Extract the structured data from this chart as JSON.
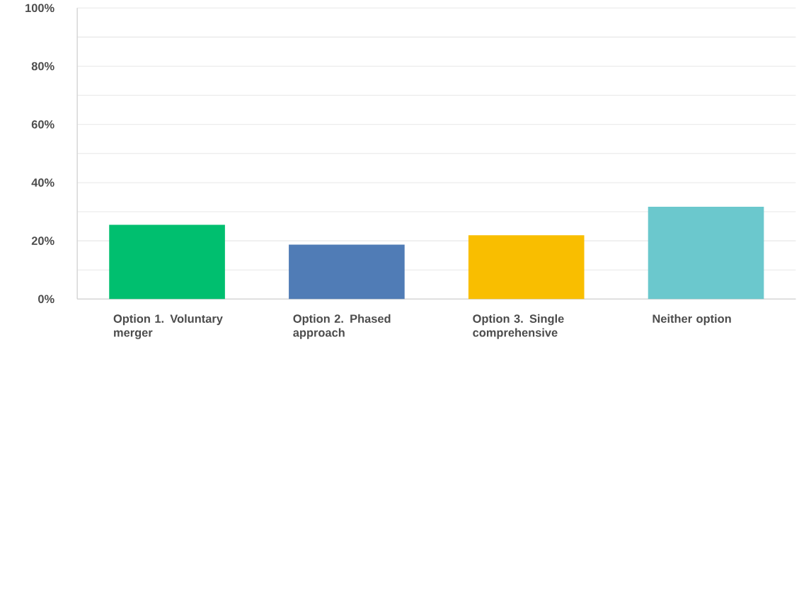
{
  "chart_data": {
    "type": "bar",
    "categories": [
      "Option 1. Voluntary merger",
      "Option 2. Phased approach",
      "Option 3. Single comprehensive",
      "Neither option"
    ],
    "values": [
      25.5,
      18.7,
      21.9,
      31.7
    ],
    "colors": [
      "#00bf6f",
      "#507cb6",
      "#f9be00",
      "#6bc8cd"
    ],
    "ylim": [
      0,
      100
    ],
    "yticks": [
      {
        "value": 0,
        "label": "0%"
      },
      {
        "value": 10,
        "label": null
      },
      {
        "value": 20,
        "label": "20%"
      },
      {
        "value": 30,
        "label": null
      },
      {
        "value": 40,
        "label": "40%"
      },
      {
        "value": 50,
        "label": null
      },
      {
        "value": 60,
        "label": "60%"
      },
      {
        "value": 70,
        "label": null
      },
      {
        "value": 80,
        "label": "80%"
      },
      {
        "value": 90,
        "label": null
      },
      {
        "value": 100,
        "label": "100%"
      }
    ],
    "grid": "y"
  }
}
